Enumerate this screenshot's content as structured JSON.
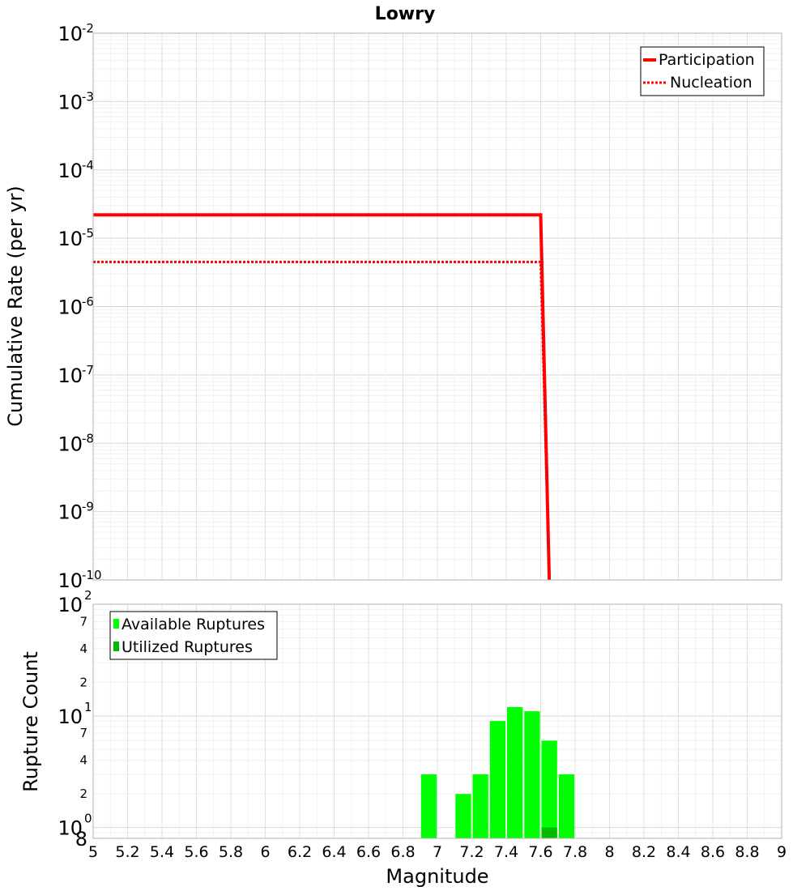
{
  "chart_data": [
    {
      "type": "line",
      "title": "Lowry",
      "xlabel": "Magnitude",
      "ylabel": "Cumulative Rate (per yr)",
      "xlim": [
        5,
        9
      ],
      "ylim": [
        1e-10,
        0.01
      ],
      "yscale": "log",
      "grid": true,
      "legend_position": "top-right",
      "series": [
        {
          "name": "Participation",
          "style": "solid",
          "color": "#ff0000",
          "x": [
            5.0,
            7.6,
            7.65
          ],
          "y": [
            2.2e-05,
            2.2e-05,
            1e-10
          ]
        },
        {
          "name": "Nucleation",
          "style": "dotted",
          "color": "#ff0000",
          "x": [
            5.0,
            7.6,
            7.65
          ],
          "y": [
            4.5e-06,
            4.5e-06,
            1e-10
          ]
        }
      ],
      "y_ticks": [
        {
          "base": "10",
          "exp": "-2",
          "value": 0.01
        },
        {
          "base": "10",
          "exp": "-3",
          "value": 0.001
        },
        {
          "base": "10",
          "exp": "-4",
          "value": 0.0001
        },
        {
          "base": "10",
          "exp": "-5",
          "value": 1e-05
        },
        {
          "base": "10",
          "exp": "-6",
          "value": 1e-06
        },
        {
          "base": "10",
          "exp": "-7",
          "value": 1e-07
        },
        {
          "base": "10",
          "exp": "-8",
          "value": 1e-08
        },
        {
          "base": "10",
          "exp": "-9",
          "value": 1e-09
        },
        {
          "base": "10",
          "exp": "-10",
          "value": 1e-10
        }
      ]
    },
    {
      "type": "bar",
      "xlabel": "Magnitude",
      "ylabel": "Rupture Count",
      "xlim": [
        5,
        9
      ],
      "ylim": [
        0.8,
        100
      ],
      "yscale": "log",
      "grid": true,
      "legend_position": "top-left",
      "x_ticks": [
        "5",
        "5.2",
        "5.4",
        "5.6",
        "5.8",
        "6",
        "6.2",
        "6.4",
        "6.6",
        "6.8",
        "7",
        "7.2",
        "7.4",
        "7.6",
        "7.8",
        "8",
        "8.2",
        "8.4",
        "8.6",
        "8.8",
        "9"
      ],
      "series": [
        {
          "name": "Available Ruptures",
          "color": "#00ff00",
          "x": [
            6.95,
            7.15,
            7.25,
            7.35,
            7.45,
            7.55,
            7.65,
            7.75
          ],
          "values": [
            3,
            2,
            3,
            9,
            12,
            11,
            6,
            3
          ]
        },
        {
          "name": "Utilized Ruptures",
          "color": "#00bb00",
          "x": [
            7.65
          ],
          "values": [
            1
          ]
        }
      ],
      "y_ticks": [
        {
          "base": "10",
          "exp": "2",
          "value": 100
        },
        {
          "base": "10",
          "exp": "1",
          "value": 10
        },
        {
          "base": "10",
          "exp": "0",
          "value": 1
        }
      ],
      "y_minor_ticks": [
        {
          "label": "7",
          "value": 70
        },
        {
          "label": "4",
          "value": 40
        },
        {
          "label": "2",
          "value": 20
        },
        {
          "label": "7",
          "value": 7
        },
        {
          "label": "4",
          "value": 4
        },
        {
          "label": "2",
          "value": 2
        },
        {
          "label": "8",
          "value": 0.8
        }
      ]
    }
  ]
}
